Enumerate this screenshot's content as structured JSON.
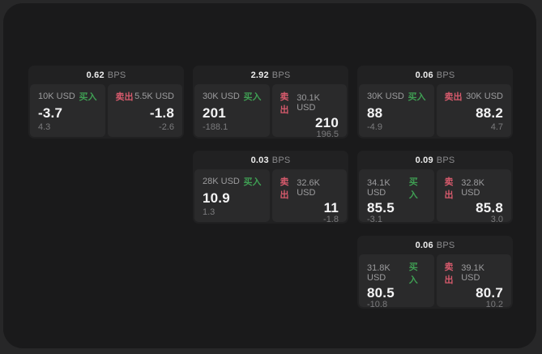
{
  "colors": {
    "buy": "#3f9e53",
    "sell": "#d65a6c"
  },
  "cards": [
    {
      "bps_value": "0.62",
      "bps_unit": "BPS",
      "buy": {
        "size": "10K USD",
        "side_label": "买入",
        "price": "-3.7",
        "delta": "4.3"
      },
      "sell": {
        "size": "5.5K USD",
        "side_label": "卖出",
        "price": "-1.8",
        "delta": "-2.6"
      }
    },
    {
      "bps_value": "2.92",
      "bps_unit": "BPS",
      "buy": {
        "size": "30K USD",
        "side_label": "买入",
        "price": "201",
        "delta": "-188.1"
      },
      "sell": {
        "size": "30.1K USD",
        "side_label": "卖出",
        "price": "210",
        "delta": "196.5"
      }
    },
    {
      "bps_value": "0.06",
      "bps_unit": "BPS",
      "buy": {
        "size": "30K USD",
        "side_label": "买入",
        "price": "88",
        "delta": "-4.9"
      },
      "sell": {
        "size": "30K USD",
        "side_label": "卖出",
        "price": "88.2",
        "delta": "4.7"
      }
    },
    {
      "bps_value": "0.03",
      "bps_unit": "BPS",
      "buy": {
        "size": "28K USD",
        "side_label": "买入",
        "price": "10.9",
        "delta": "1.3"
      },
      "sell": {
        "size": "32.6K USD",
        "side_label": "卖出",
        "price": "11",
        "delta": "-1.8"
      }
    },
    {
      "bps_value": "0.09",
      "bps_unit": "BPS",
      "buy": {
        "size": "34.1K USD",
        "side_label": "买入",
        "price": "85.5",
        "delta": "-3.1"
      },
      "sell": {
        "size": "32.8K USD",
        "side_label": "卖出",
        "price": "85.8",
        "delta": "3.0"
      }
    },
    {
      "bps_value": "0.06",
      "bps_unit": "BPS",
      "buy": {
        "size": "31.8K USD",
        "side_label": "买入",
        "price": "80.5",
        "delta": "-10.8"
      },
      "sell": {
        "size": "39.1K USD",
        "side_label": "卖出",
        "price": "80.7",
        "delta": "10.2"
      }
    }
  ]
}
